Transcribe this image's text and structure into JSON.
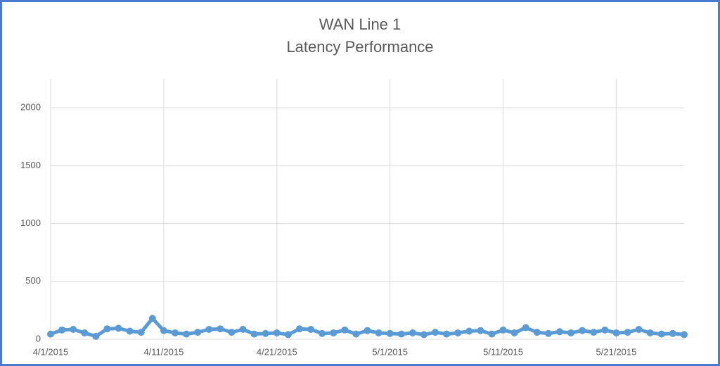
{
  "chart_data": {
    "type": "line",
    "title": "WAN Line 1",
    "subtitle": "Latency Performance",
    "x": [
      "4/1/2015",
      "4/2/2015",
      "4/3/2015",
      "4/4/2015",
      "4/5/2015",
      "4/6/2015",
      "4/7/2015",
      "4/8/2015",
      "4/9/2015",
      "4/10/2015",
      "4/11/2015",
      "4/12/2015",
      "4/13/2015",
      "4/14/2015",
      "4/15/2015",
      "4/16/2015",
      "4/17/2015",
      "4/18/2015",
      "4/19/2015",
      "4/20/2015",
      "4/21/2015",
      "4/22/2015",
      "4/23/2015",
      "4/24/2015",
      "4/25/2015",
      "4/26/2015",
      "4/27/2015",
      "4/28/2015",
      "4/29/2015",
      "4/30/2015",
      "5/1/2015",
      "5/2/2015",
      "5/3/2015",
      "5/4/2015",
      "5/5/2015",
      "5/6/2015",
      "5/7/2015",
      "5/8/2015",
      "5/9/2015",
      "5/10/2015",
      "5/11/2015",
      "5/12/2015",
      "5/13/2015",
      "5/14/2015",
      "5/15/2015",
      "5/16/2015",
      "5/17/2015",
      "5/18/2015",
      "5/19/2015",
      "5/20/2015",
      "5/21/2015",
      "5/22/2015",
      "5/23/2015",
      "5/24/2015",
      "5/25/2015",
      "5/26/2015",
      "5/27/2015"
    ],
    "values": [
      45,
      80,
      85,
      55,
      25,
      90,
      95,
      70,
      60,
      180,
      75,
      55,
      45,
      60,
      85,
      90,
      60,
      85,
      45,
      50,
      55,
      40,
      90,
      85,
      50,
      55,
      80,
      45,
      75,
      55,
      50,
      45,
      55,
      40,
      60,
      45,
      55,
      70,
      75,
      45,
      80,
      55,
      100,
      60,
      50,
      65,
      55,
      75,
      60,
      80,
      55,
      60,
      85,
      55,
      45,
      50,
      40
    ],
    "color": "#5b9bd5",
    "xlim": [
      "4/1/2015",
      "5/27/2015"
    ],
    "xticks": [
      "4/1/2015",
      "4/11/2015",
      "4/21/2015",
      "5/1/2015",
      "5/11/2015",
      "5/21/2015"
    ],
    "ylim": [
      0,
      2250
    ],
    "yticks": [
      0,
      500,
      1000,
      1500,
      2000
    ],
    "grid": true
  }
}
